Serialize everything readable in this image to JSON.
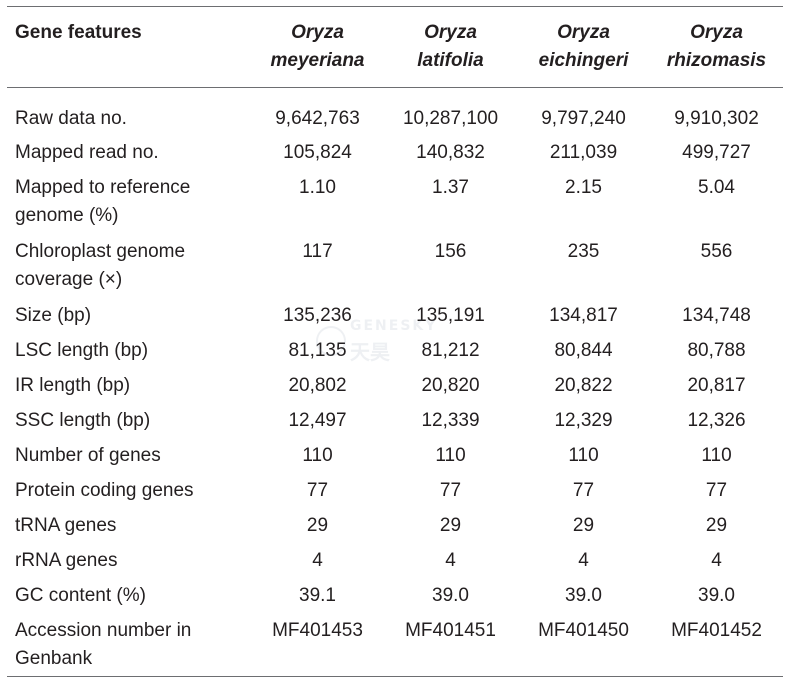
{
  "table": {
    "header": {
      "features": "Gene features",
      "species": [
        {
          "genus": "Oryza",
          "epithet": "meyeriana"
        },
        {
          "genus": "Oryza",
          "epithet": "latifolia"
        },
        {
          "genus": "Oryza",
          "epithet": "eichingeri"
        },
        {
          "genus": "Oryza",
          "epithet": "rhizomasis"
        }
      ]
    },
    "rows": [
      {
        "feature": "Raw data no.",
        "values": [
          "9,642,763",
          "10,287,100",
          "9,797,240",
          "9,910,302"
        ]
      },
      {
        "feature": "Mapped read no.",
        "values": [
          "105,824",
          "140,832",
          "211,039",
          "499,727"
        ]
      },
      {
        "feature_line1": "Mapped to reference",
        "feature_line2": "genome (%)",
        "values": [
          "1.10",
          "1.37",
          "2.15",
          "5.04"
        ]
      },
      {
        "feature_line1": "Chloroplast genome",
        "feature_line2": "coverage (×)",
        "values": [
          "117",
          "156",
          "235",
          "556"
        ]
      },
      {
        "feature": "Size (bp)",
        "values": [
          "135,236",
          "135,191",
          "134,817",
          "134,748"
        ]
      },
      {
        "feature": "LSC length (bp)",
        "values": [
          "81,135",
          "81,212",
          "80,844",
          "80,788"
        ]
      },
      {
        "feature": "IR length (bp)",
        "values": [
          "20,802",
          "20,820",
          "20,822",
          "20,817"
        ]
      },
      {
        "feature": "SSC length (bp)",
        "values": [
          "12,497",
          "12,339",
          "12,329",
          "12,326"
        ]
      },
      {
        "feature": "Number of genes",
        "values": [
          "110",
          "110",
          "110",
          "110"
        ]
      },
      {
        "feature": "Protein coding genes",
        "values": [
          "77",
          "77",
          "77",
          "77"
        ]
      },
      {
        "feature": "tRNA genes",
        "values": [
          "29",
          "29",
          "29",
          "29"
        ]
      },
      {
        "feature": "rRNA genes",
        "values": [
          "4",
          "4",
          "4",
          "4"
        ]
      },
      {
        "feature": "GC content (%)",
        "values": [
          "39.1",
          "39.0",
          "39.0",
          "39.0"
        ]
      },
      {
        "feature_line1": "Accession number in",
        "feature_line2": "Genbank",
        "values": [
          "MF401453",
          "MF401451",
          "MF401450",
          "MF401452"
        ]
      }
    ]
  },
  "watermark": {
    "brand": "GENESKY",
    "chinese": "天昊"
  }
}
